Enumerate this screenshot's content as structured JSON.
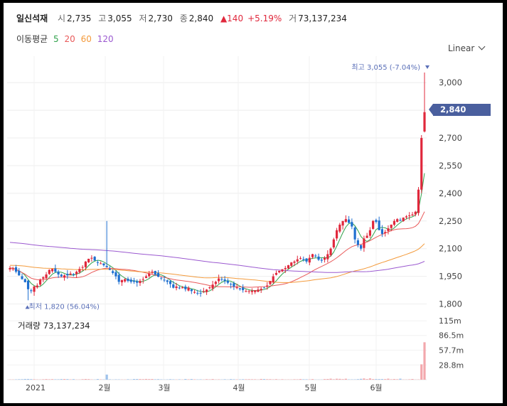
{
  "header": {
    "name": "일신석재",
    "open_label": "시",
    "open_value": "2,735",
    "high_label": "고",
    "high_value": "3,055",
    "low_label": "저",
    "low_value": "2,730",
    "close_label": "종",
    "close_value": "2,840",
    "change_arrow": "▲",
    "change_value": "140",
    "change_pct": "+5.19%",
    "volume_label": "거",
    "volume_value": "73,137,234"
  },
  "ma_legend": {
    "label": "이동평균",
    "items": [
      {
        "period": "5",
        "color": "#31a24c"
      },
      {
        "period": "20",
        "color": "#e95a5a"
      },
      {
        "period": "60",
        "color": "#f39a3b"
      },
      {
        "period": "120",
        "color": "#9b59d0"
      }
    ]
  },
  "scale_button": {
    "label": "Linear",
    "icon": "chevron-down-icon"
  },
  "price_tag": "2,840",
  "markers": {
    "high": {
      "label": "최고",
      "value": "3,055 (-7.04%)",
      "icon": "triangle-down-icon"
    },
    "low": {
      "label": "최저",
      "value": "1,820 (56.04%)",
      "icon": "triangle-up-icon"
    }
  },
  "volume_panel": {
    "label": "거래량",
    "value": "73,137,234",
    "ticks": [
      "115m",
      "86.5m",
      "57.7m",
      "28.8m"
    ]
  },
  "colors": {
    "up": "#e0283c",
    "down": "#1e6fd0",
    "tag": "#4a5f9e"
  },
  "chart_data": {
    "type": "candlestick",
    "y_ticks": [
      "3,000",
      "2,850",
      "2,700",
      "2,550",
      "2,400",
      "2,250",
      "2,100",
      "1,950",
      "1,800"
    ],
    "y_tick_values": [
      3000,
      2850,
      2700,
      2550,
      2400,
      2250,
      2100,
      1950,
      1800
    ],
    "ylim": [
      1775,
      3105
    ],
    "x_ticks": [
      "2021",
      "2월",
      "3월",
      "4월",
      "5월",
      "6월"
    ],
    "grid": true,
    "close_series": [
      1995,
      1992,
      1975,
      1955,
      1935,
      1918,
      1880,
      1870,
      1895,
      1900,
      1930,
      1945,
      1960,
      1985,
      1990,
      1975,
      1960,
      1950,
      1955,
      1955,
      1965,
      1958,
      1975,
      1990,
      2000,
      2030,
      2045,
      2050,
      2035,
      2025,
      2020,
      2010,
      2000,
      1985,
      1968,
      1950,
      1920,
      1930,
      1935,
      1925,
      1920,
      1920,
      1915,
      1925,
      1935,
      1950,
      1965,
      1975,
      1960,
      1948,
      1940,
      1930,
      1920,
      1908,
      1888,
      1895,
      1885,
      1890,
      1880,
      1888,
      1870,
      1865,
      1858,
      1860,
      1870,
      1878,
      1890,
      1905,
      1920,
      1938,
      1935,
      1925,
      1915,
      1905,
      1895,
      1890,
      1880,
      1875,
      1870,
      1870,
      1872,
      1875,
      1878,
      1882,
      1885,
      1900,
      1925,
      1950,
      1968,
      1980,
      1988,
      1995,
      2010,
      2025,
      2030,
      2042,
      2048,
      2040,
      2030,
      2050,
      2070,
      2058,
      2040,
      2035,
      2050,
      2070,
      2100,
      2150,
      2200,
      2230,
      2250,
      2260,
      2240,
      2220,
      2150,
      2120,
      2100,
      2155,
      2170,
      2200,
      2250,
      2245,
      2200,
      2180,
      2190,
      2210,
      2230,
      2250,
      2260,
      2255,
      2268,
      2275,
      2280,
      2285,
      2300,
      2420,
      2700,
      2840
    ],
    "high": {
      "value": 3055,
      "label": "3,055 (-7.04%)"
    },
    "low": {
      "value": 1820,
      "label": "1,820 (56.04%)"
    },
    "last": 2840,
    "volume_ticks_m": [
      115,
      86.5,
      57.7,
      28.8
    ],
    "volume_last": 73137234
  }
}
